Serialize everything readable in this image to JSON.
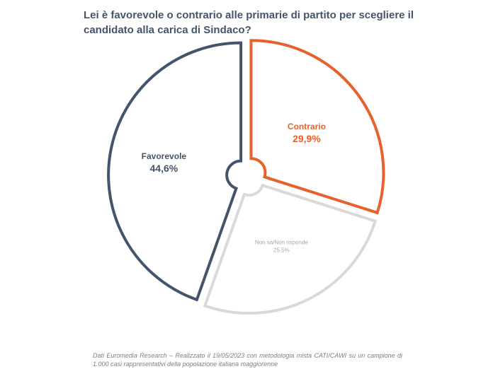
{
  "title": "Lei è favorevole o contrario alle primarie di partito per scegliere il candidato alla carica di Sindaco?",
  "chart_data": {
    "type": "pie",
    "slices": [
      {
        "label": "Contrario",
        "value": 29.9,
        "value_label": "29,9%",
        "color": "#e8602c"
      },
      {
        "label": "Non sa/Non risponde",
        "value": 25.5,
        "value_label": "25,5%",
        "color": "#d9d9d9"
      },
      {
        "label": "Favorevole",
        "value": 44.6,
        "value_label": "44,6%",
        "color": "#44546a"
      }
    ],
    "legend": "none",
    "exploded": true,
    "donut_hole": true
  },
  "source": "Dati Euromedia Research – Realizzato il 19/05/2023 con metodologia mista CATI/CAWI su un campione di 1.000 casi rappresentativi della popolazione italiana maggiorenne"
}
